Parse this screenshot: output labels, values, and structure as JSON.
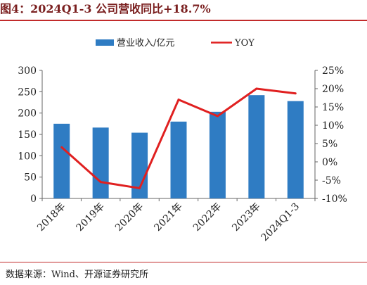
{
  "figure": {
    "title": "图4：2024Q1-3 公司营收同比+18.7%",
    "source": "数据来源：Wind、开源证券研究所"
  },
  "chart_data": {
    "type": "bar",
    "categories": [
      "2018年",
      "2019年",
      "2020年",
      "2021年",
      "2022年",
      "2023年",
      "2024Q1-3"
    ],
    "series": [
      {
        "name": "营业收入/亿元",
        "type": "bar",
        "axis": "left",
        "color": "#2f7cc3",
        "values": [
          175,
          166,
          154,
          180,
          203,
          242,
          228
        ]
      },
      {
        "name": "YOY",
        "type": "line",
        "axis": "right",
        "color": "#e02020",
        "values": [
          4.0,
          -5.5,
          -7.2,
          17.0,
          12.5,
          20.0,
          18.7
        ]
      }
    ],
    "yleft": {
      "min": 0,
      "max": 300,
      "ticks": [
        "0",
        "50",
        "100",
        "150",
        "200",
        "250",
        "300"
      ]
    },
    "yright": {
      "min": -10,
      "max": 25,
      "ticks": [
        "-10%",
        "-5%",
        "0%",
        "5%",
        "10%",
        "15%",
        "20%",
        "25%"
      ]
    },
    "legend_position": "top"
  }
}
